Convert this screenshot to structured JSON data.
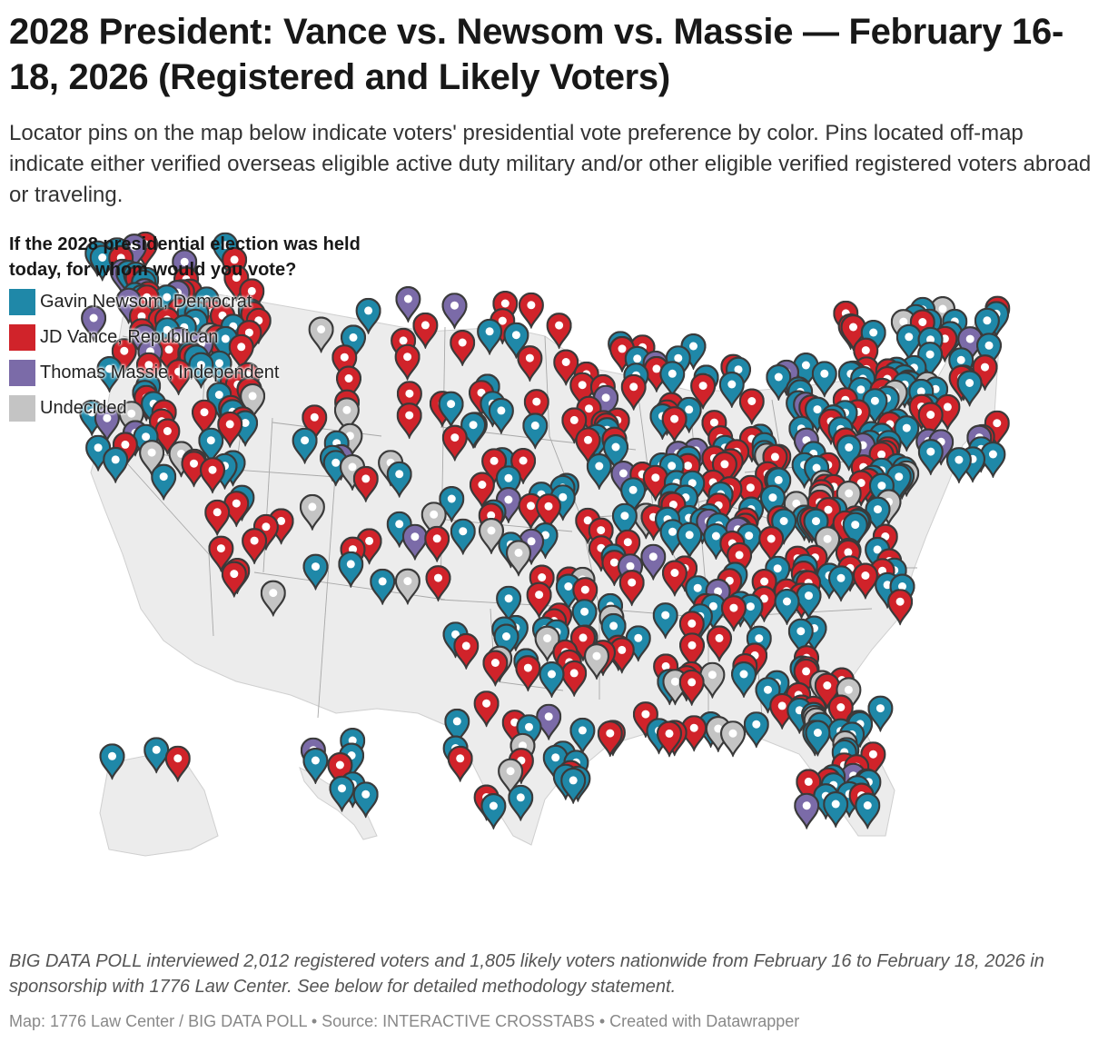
{
  "header": {
    "title": "2028 President: Vance vs. Newsom vs. Massie — February 16-18, 2026 (Registered and Likely Voters)",
    "description": "Locator pins on the map below indicate voters' presidential vote preference by color. Pins located off-map indicate either verified overseas eligible active duty military and/or other eligible verified registered voters abroad or traveling."
  },
  "legend": {
    "title": "If the 2028 presidential election was held today, for whom would you vote?",
    "items": [
      {
        "label": "Gavin Newsom, Democrat",
        "color": "#1f88a8"
      },
      {
        "label": "JD Vance, Republican",
        "color": "#d0232a"
      },
      {
        "label": "Thomas Massie, Independent",
        "color": "#7b6ba8"
      },
      {
        "label": "Undecided",
        "color": "#c4c4c4"
      }
    ]
  },
  "map": {
    "region": "United States",
    "pin_icon": "map-marker-icon",
    "land_color": "#ececec",
    "border_color": "#9a9a9a"
  },
  "footer": {
    "note": "BIG DATA POLL interviewed 2,012 registered voters and 1,805 likely voters nationwide from February 16 to February 18, 2026 in sponsorship with 1776 Law Center. See below for detailed methodology statement.",
    "credits": "Map: 1776 Law Center / BIG DATA POLL • Source: INTERACTIVE CROSSTABS • Created with Datawrapper"
  }
}
